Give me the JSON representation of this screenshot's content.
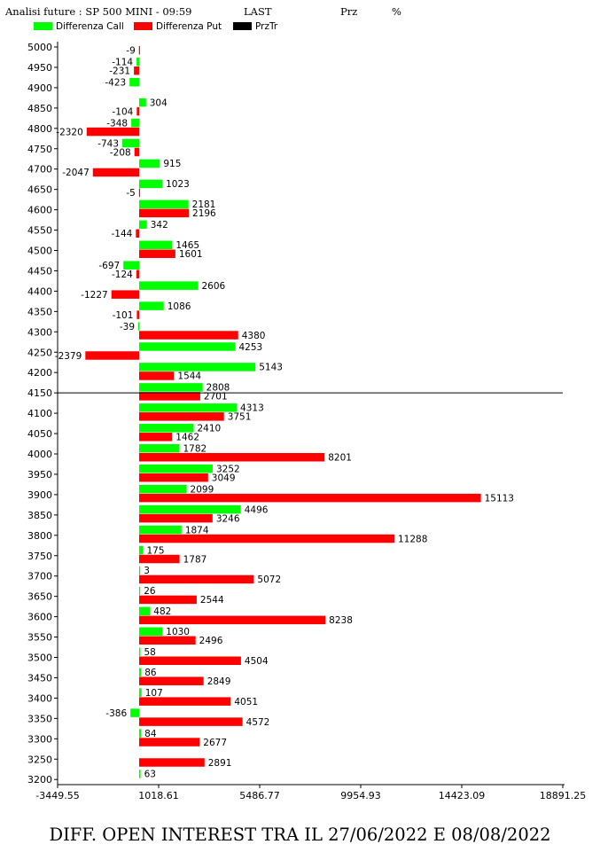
{
  "header": {
    "title": "Analisi future : SP 500 MINI - 09:59",
    "last_label": "LAST",
    "prz_label": "Prz",
    "pct_label": "%"
  },
  "legend": {
    "call_label": "Differenza Call",
    "put_label": "Differenza Put",
    "przt_label": "PrzTr"
  },
  "colors": {
    "call": "#00ff00",
    "put": "#ff0000",
    "przt": "#000000"
  },
  "footer": {
    "text": "DIFF. OPEN INTEREST TRA IL 27/06/2022 E 08/08/2022"
  },
  "chart_data": {
    "type": "bar",
    "orientation": "horizontal",
    "categories": [
      "5000",
      "4950",
      "4900",
      "4850",
      "4800",
      "4750",
      "4700",
      "4650",
      "4600",
      "4550",
      "4500",
      "4450",
      "4400",
      "4350",
      "4300",
      "4250",
      "4200",
      "4150",
      "4100",
      "4050",
      "4000",
      "3950",
      "3900",
      "3850",
      "3800",
      "3750",
      "3700",
      "3650",
      "3600",
      "3550",
      "3500",
      "3450",
      "3400",
      "3350",
      "3300",
      "3250",
      "3200"
    ],
    "series": [
      {
        "name": "Differenza Call",
        "values": [
          null,
          -114,
          -423,
          304,
          -348,
          -743,
          915,
          1023,
          2181,
          342,
          1465,
          -697,
          2606,
          1086,
          -39,
          4253,
          5143,
          2808,
          4313,
          2410,
          1782,
          3252,
          2099,
          4496,
          1874,
          175,
          3,
          26,
          482,
          1030,
          58,
          86,
          107,
          -386,
          84,
          null,
          63
        ]
      },
      {
        "name": "Differenza Put",
        "values": [
          -9,
          -231,
          null,
          -104,
          -2320,
          -208,
          -2047,
          -5,
          2196,
          -144,
          1601,
          -124,
          -1227,
          -101,
          4380,
          -2379,
          1544,
          2701,
          3751,
          1462,
          8201,
          3049,
          15113,
          3246,
          11288,
          1787,
          5072,
          2544,
          8238,
          2496,
          4504,
          2849,
          4051,
          4572,
          2677,
          2891,
          null
        ]
      }
    ],
    "price_line": {
      "name": "PrzTr",
      "value": "4150"
    },
    "x_ticks": [
      "-3449.55",
      "1018.61",
      "5486.77",
      "9954.93",
      "14423.09",
      "18891.25"
    ],
    "xlim": [
      -3449.55,
      18891.25
    ],
    "xlabel": "",
    "ylabel": "",
    "grid": false
  }
}
